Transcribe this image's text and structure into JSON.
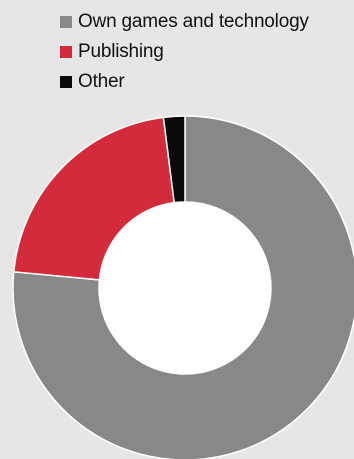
{
  "chart_data": {
    "type": "pie",
    "donut": true,
    "categories": [
      "Own games and technology",
      "Publishing",
      "Other"
    ],
    "values": [
      76.5,
      21.5,
      2.0
    ],
    "unit": "%",
    "colors": [
      "#888888",
      "#d42b3c",
      "#0a0a0a"
    ],
    "legend": "top",
    "title": ""
  }
}
